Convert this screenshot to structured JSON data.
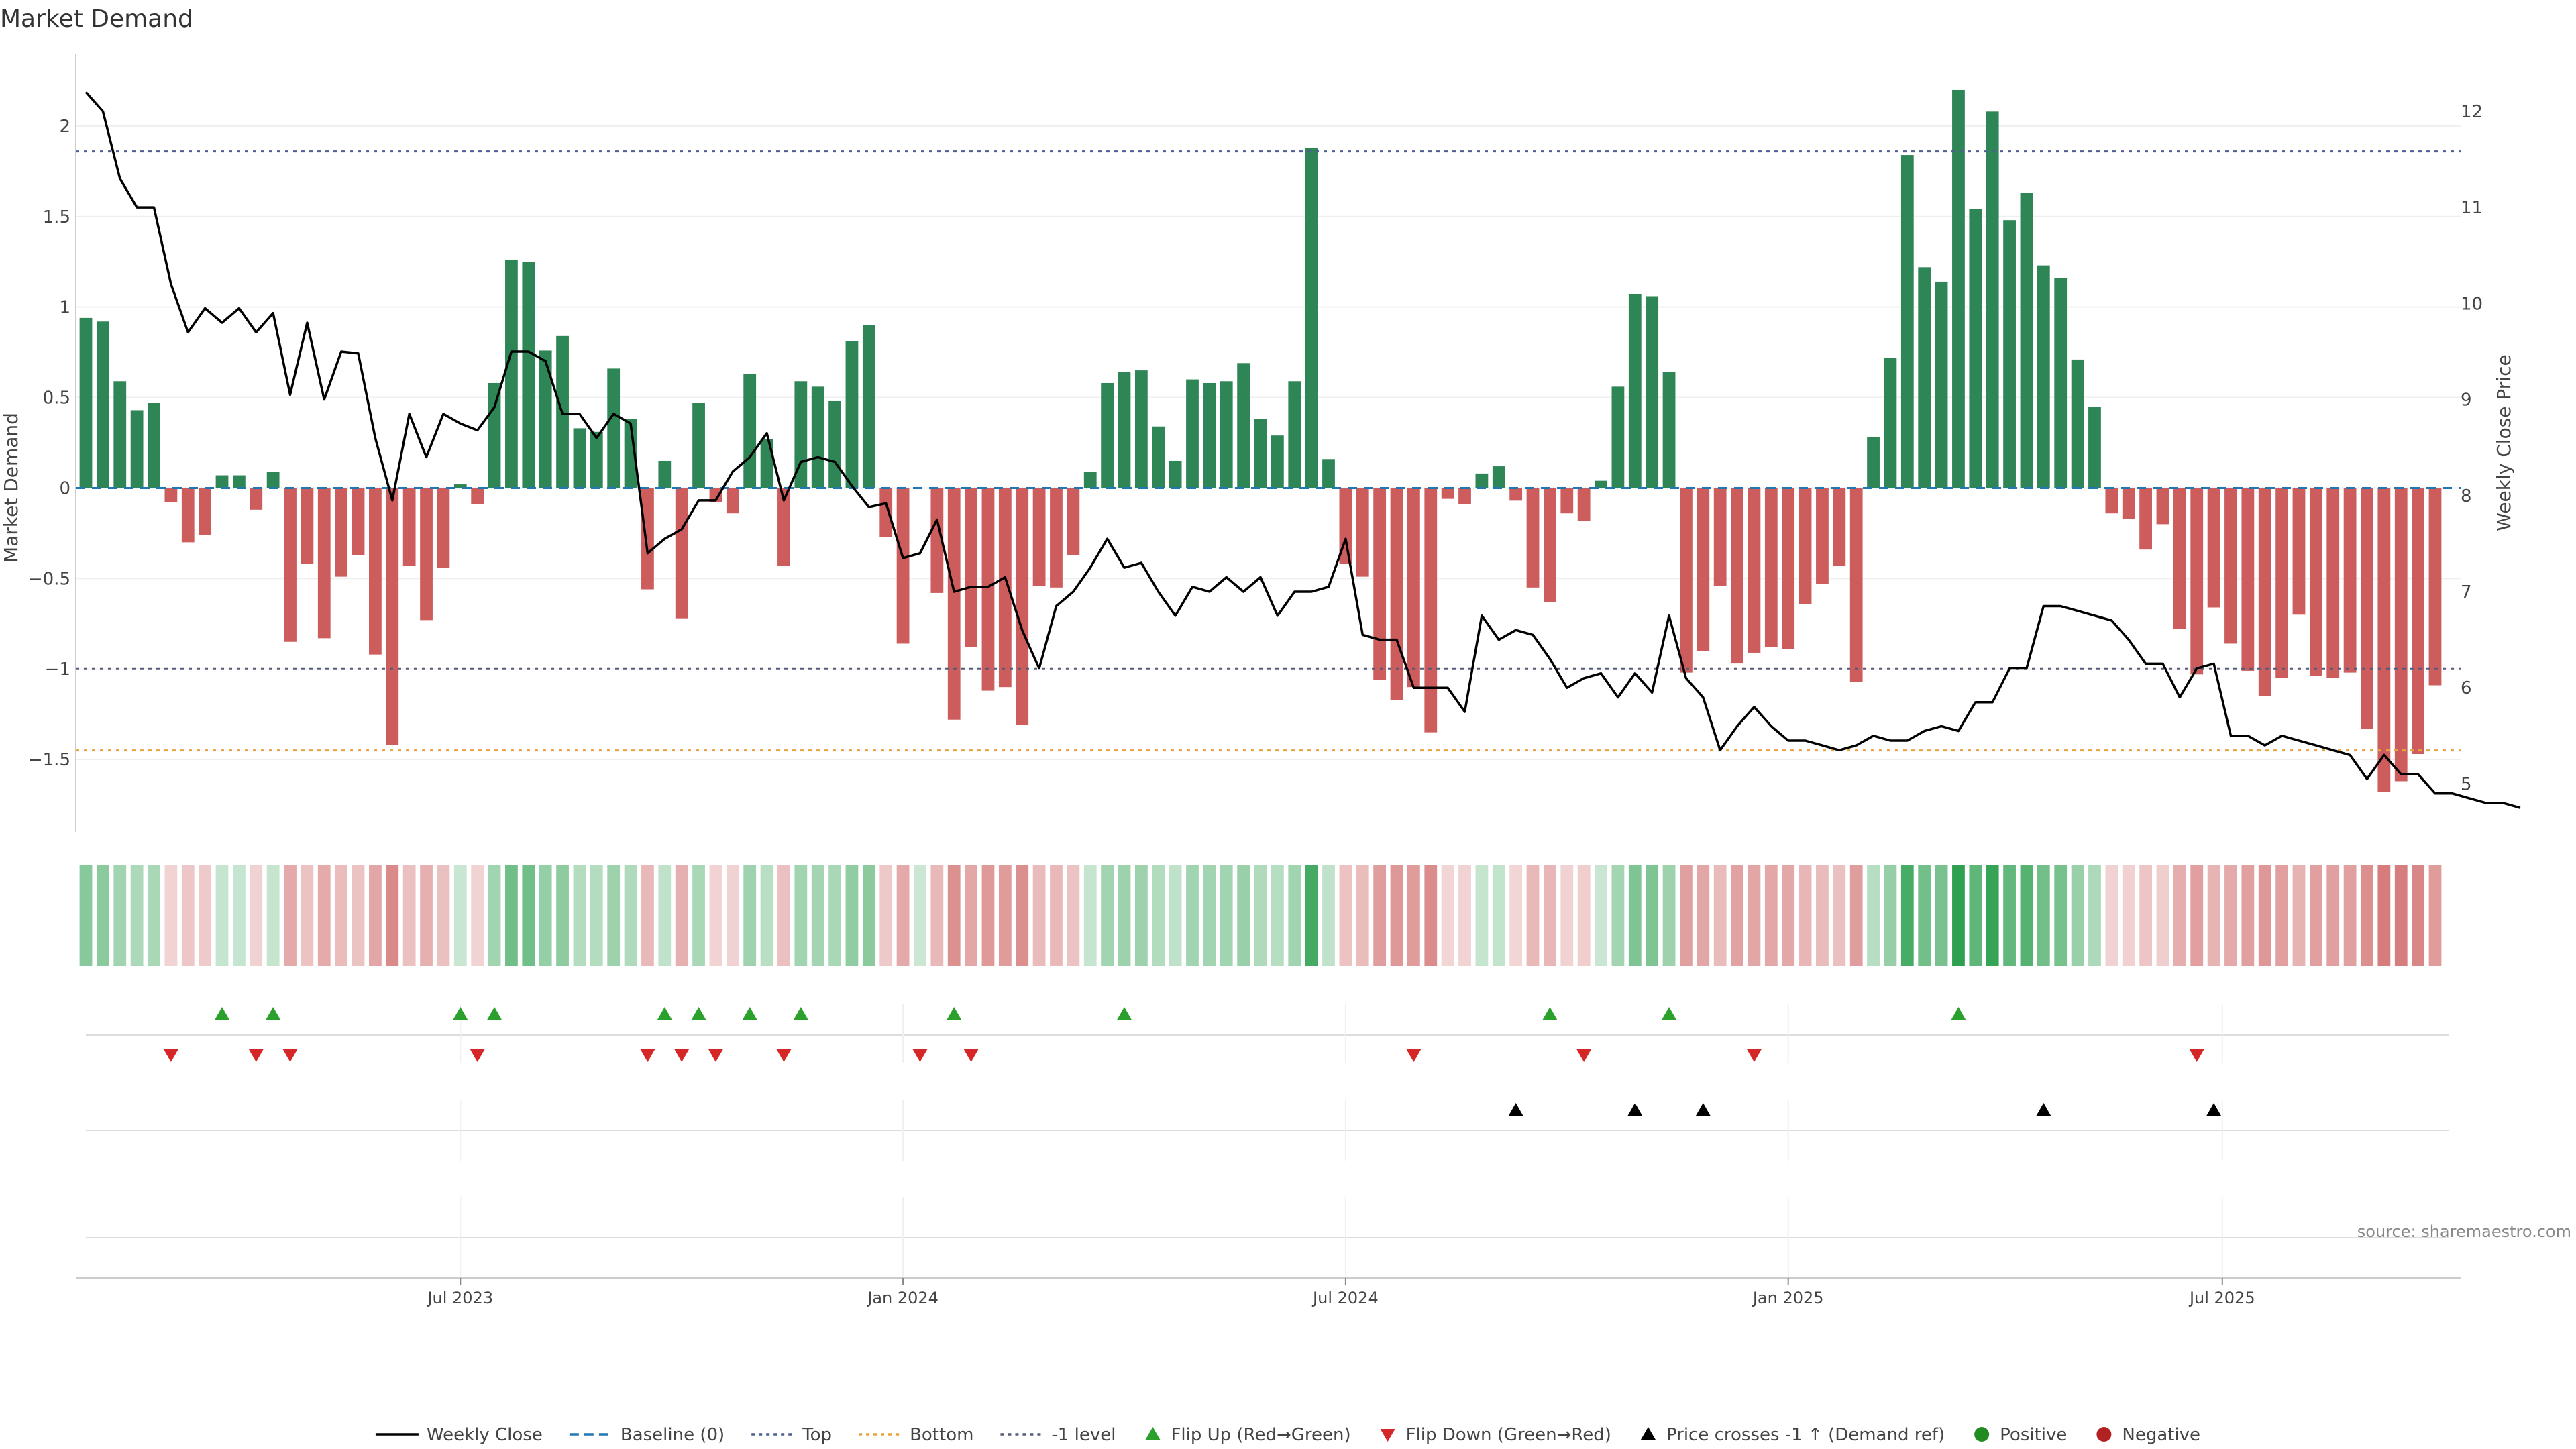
{
  "chart_data": {
    "type": "bar",
    "title": "Market Demand",
    "ylabel_left": "Market Demand",
    "ylabel_right": "Weekly Close Price",
    "ylim_left": [
      -1.9,
      2.4
    ],
    "ylim_right": [
      4.5,
      12.6
    ],
    "yticks_left": [
      -1.5,
      -1,
      -0.5,
      0,
      0.5,
      1,
      1.5,
      2
    ],
    "ytick_labels_left": [
      "−1.5",
      "−1",
      "−0.5",
      "0",
      "0.5",
      "1",
      "1.5",
      "2"
    ],
    "yticks_right": [
      5,
      6,
      7,
      8,
      9,
      10,
      11,
      12
    ],
    "ytick_labels_right": [
      "5",
      "6",
      "7",
      "8",
      "9",
      "10",
      "11",
      "12"
    ],
    "x_start_week": 0,
    "x_ticks": [
      {
        "label": "Jul 2023",
        "week": 22
      },
      {
        "label": "Jan 2024",
        "week": 48
      },
      {
        "label": "Jul 2024",
        "week": 74
      },
      {
        "label": "Jan 2025",
        "week": 100
      },
      {
        "label": "Jul 2025",
        "week": 125.5
      }
    ],
    "levels": {
      "top": 1.86,
      "bottom": -1.45,
      "minus_one": -1.0,
      "baseline": 0
    },
    "demand": [
      0.94,
      0.92,
      0.59,
      0.43,
      0.47,
      -0.08,
      -0.3,
      -0.26,
      0.07,
      0.07,
      -0.12,
      0.09,
      -0.85,
      -0.42,
      -0.83,
      -0.49,
      -0.37,
      -0.92,
      -1.42,
      -0.43,
      -0.73,
      -0.44,
      0.02,
      -0.09,
      0.58,
      1.26,
      1.25,
      0.76,
      0.84,
      0.33,
      0.31,
      0.66,
      0.38,
      -0.56,
      0.15,
      -0.72,
      0.47,
      -0.08,
      -0.14,
      0.63,
      0.27,
      -0.43,
      0.59,
      0.56,
      0.48,
      0.81,
      0.9,
      -0.27,
      -0.86,
      0.0,
      -0.58,
      -1.28,
      -0.88,
      -1.12,
      -1.1,
      -1.31,
      -0.54,
      -0.55,
      -0.37,
      0.09,
      0.58,
      0.64,
      0.65,
      0.34,
      0.15,
      0.6,
      0.58,
      0.59,
      0.69,
      0.38,
      0.29,
      0.59,
      1.88,
      0.16,
      -0.42,
      -0.49,
      -1.06,
      -1.17,
      -1.1,
      -1.35,
      -0.06,
      -0.09,
      0.08,
      0.12,
      -0.07,
      -0.55,
      -0.63,
      -0.14,
      -0.18,
      0.04,
      0.56,
      1.07,
      1.06,
      0.64,
      -1.02,
      -0.9,
      -0.54,
      -0.97,
      -0.91,
      -0.88,
      -0.89,
      -0.64,
      -0.53,
      -0.43,
      -1.07,
      0.28,
      0.72,
      1.84,
      1.22,
      1.14,
      2.2,
      1.54,
      2.08,
      1.48,
      1.63,
      1.23,
      1.16,
      0.71,
      0.45,
      -0.14,
      -0.17,
      -0.34,
      -0.2,
      -0.78,
      -1.03,
      -0.66,
      -0.86,
      -1.01,
      -1.15,
      -1.05,
      -0.7,
      -1.04,
      -1.05,
      -1.02,
      -1.33,
      -1.68,
      -1.62,
      -1.47,
      -1.09
    ],
    "weekly_close": [
      12.2,
      12.0,
      11.3,
      11.0,
      11.0,
      10.2,
      9.7,
      9.95,
      9.8,
      9.95,
      9.7,
      9.9,
      9.05,
      9.8,
      9.0,
      9.5,
      9.48,
      8.6,
      7.95,
      8.85,
      8.4,
      8.85,
      8.75,
      8.68,
      8.92,
      9.5,
      9.5,
      9.4,
      8.85,
      8.85,
      8.6,
      8.85,
      8.75,
      7.4,
      7.55,
      7.65,
      7.95,
      7.95,
      8.25,
      8.4,
      8.65,
      7.95,
      8.35,
      8.4,
      8.35,
      8.1,
      7.88,
      7.92,
      7.35,
      7.4,
      7.75,
      7.0,
      7.05,
      7.05,
      7.15,
      6.6,
      6.2,
      6.85,
      7.0,
      7.25,
      7.55,
      7.25,
      7.3,
      7.0,
      6.75,
      7.05,
      7.0,
      7.15,
      7.0,
      7.15,
      6.75,
      7.0,
      7.0,
      7.05,
      7.55,
      6.55,
      6.5,
      6.5,
      6.0,
      6.0,
      6.0,
      5.75,
      6.75,
      6.5,
      6.6,
      6.55,
      6.3,
      6.0,
      6.1,
      6.15,
      5.9,
      6.15,
      5.95,
      6.75,
      6.1,
      5.9,
      5.35,
      5.6,
      5.8,
      5.6,
      5.45,
      5.45,
      5.4,
      5.35,
      5.4,
      5.5,
      5.45,
      5.45,
      5.55,
      5.6,
      5.55,
      5.85,
      5.85,
      6.2,
      6.2,
      6.85,
      6.85,
      6.8,
      6.75,
      6.7,
      6.5,
      6.25,
      6.25,
      5.9,
      6.2,
      6.25,
      5.5,
      5.5,
      5.4,
      5.5,
      5.45,
      5.4,
      5.35,
      5.3,
      5.05,
      5.3,
      5.1,
      5.1,
      4.9,
      4.9,
      4.85,
      4.8,
      4.8,
      4.75
    ],
    "heat_band": "weekly cells: green for positive demand, red for negative, darker = larger magnitude",
    "flip_up_weeks": [
      8,
      11,
      22,
      24,
      34,
      36,
      39,
      42,
      51,
      61,
      86,
      93,
      110
    ],
    "flip_down_weeks": [
      5,
      10,
      12,
      23,
      33,
      35,
      37,
      41,
      49,
      52,
      78,
      88,
      98,
      124
    ],
    "price_cross_weeks": [
      84,
      91,
      95,
      115,
      125
    ],
    "legend": [
      {
        "label": "Weekly Close",
        "kind": "line",
        "color": "#000000",
        "dash": "solid"
      },
      {
        "label": "Baseline (0)",
        "kind": "line",
        "color": "#1f77b4",
        "dash": "dash"
      },
      {
        "label": "Top",
        "kind": "line",
        "color": "#4e5d94",
        "dash": "dot"
      },
      {
        "label": "Bottom",
        "kind": "line",
        "color": "#e8a33d",
        "dash": "dot"
      },
      {
        "label": "-1 level",
        "kind": "line",
        "color": "#555a7a",
        "dash": "dot"
      },
      {
        "label": "Flip Up (Red→Green)",
        "kind": "tri-up",
        "color": "#2ca02c"
      },
      {
        "label": "Flip Down (Green→Red)",
        "kind": "tri-down",
        "color": "#d62728"
      },
      {
        "label": "Price crosses -1 ↑ (Demand ref)",
        "kind": "tri-up",
        "color": "#000000"
      },
      {
        "label": "Positive",
        "kind": "dot",
        "color": "#228b22"
      },
      {
        "label": "Negative",
        "kind": "dot",
        "color": "#b22222"
      }
    ],
    "source": "source: sharemaestro.com"
  },
  "colors": {
    "positive_bar": "#2e8555",
    "negative_bar": "#cd5c5c",
    "top_level": "#4e5d94",
    "bottom_level": "#e8a33d",
    "minus_one_level": "#555a7a",
    "baseline": "#1f77b4",
    "flip_up": "#2ca02c",
    "flip_down": "#d62728",
    "price_cross": "#000000"
  }
}
